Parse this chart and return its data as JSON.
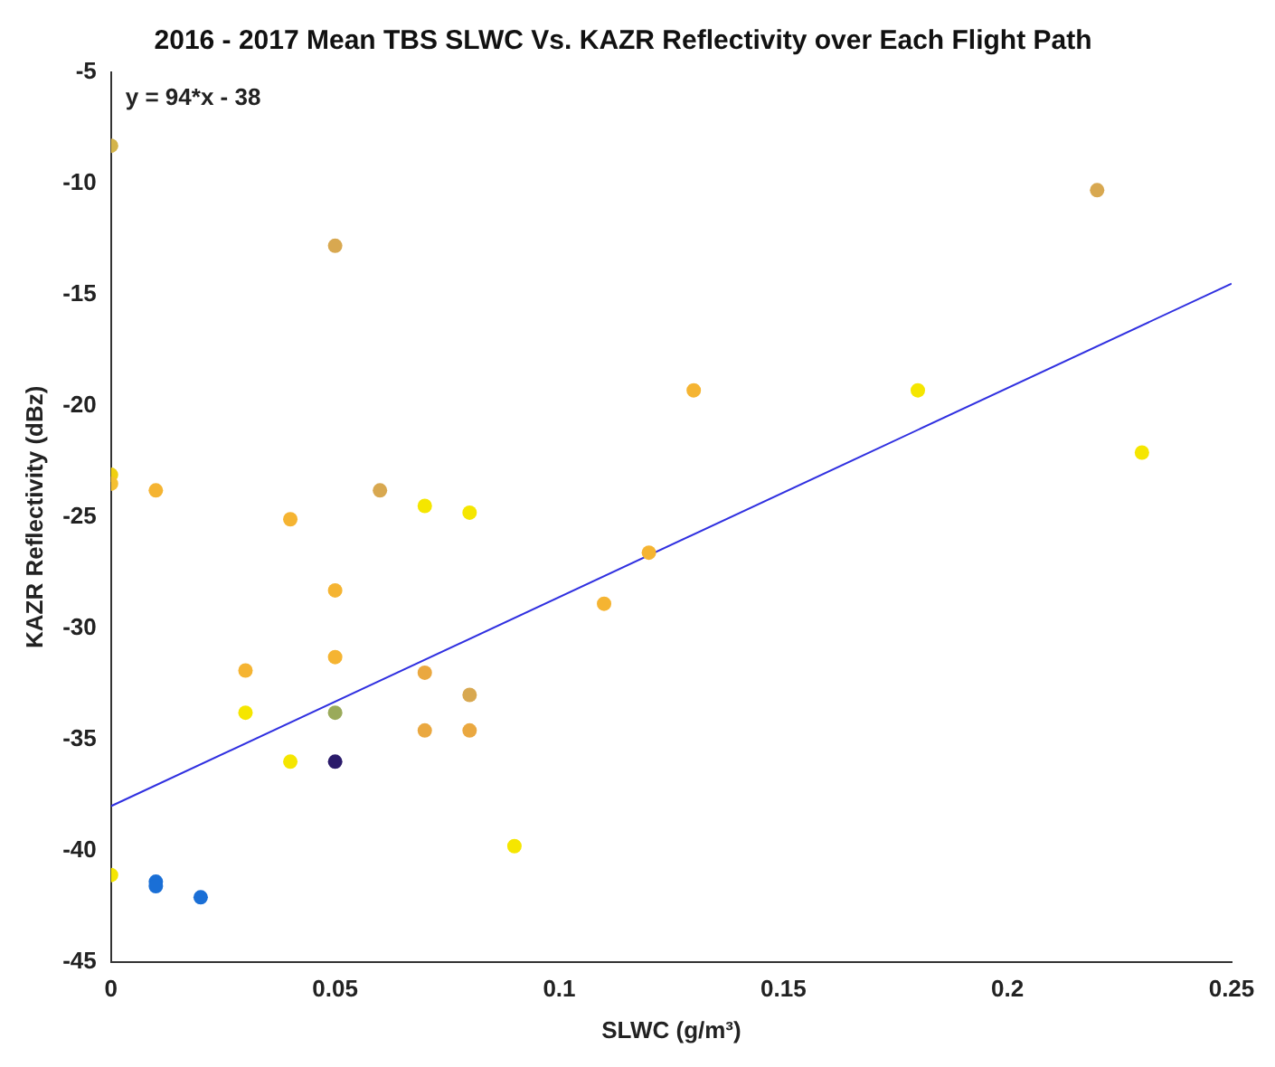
{
  "chart_data": {
    "type": "scatter",
    "title": "2016 - 2017 Mean TBS SLWC Vs. KAZR Reflectivity over Each Flight Path",
    "xlabel": "SLWC (g/m³)",
    "ylabel": "KAZR Reflectivity (dBz)",
    "annotations": [
      "y = 94*x - 38"
    ],
    "xlim": [
      0,
      0.25
    ],
    "xticks": [
      0,
      0.05,
      0.1,
      0.15,
      0.2,
      0.25
    ],
    "ylim": [
      -45,
      -5
    ],
    "yticks": [
      -45,
      -40,
      -35,
      -30,
      -25,
      -20,
      -15,
      -10,
      -5
    ],
    "grid": false,
    "legend": false,
    "marker": "circle",
    "series": [
      {
        "type": "scatter",
        "x": [
          0,
          0,
          0,
          0,
          0.01,
          0.01,
          0.01,
          0.02,
          0.03,
          0.03,
          0.04,
          0.04,
          0.05,
          0.05,
          0.05,
          0.05,
          0.05,
          0.06,
          0.07,
          0.07,
          0.07,
          0.08,
          0.08,
          0.08,
          0.09,
          0.11,
          0.12,
          0.13,
          0.18,
          0.22,
          0.23
        ],
        "values": [
          -8.3,
          -23.1,
          -23.5,
          -41.1,
          -23.8,
          -41.4,
          -41.6,
          -42.1,
          -31.9,
          -33.8,
          -25.1,
          -36.0,
          -12.8,
          -28.3,
          -31.3,
          -33.8,
          -36.0,
          -23.8,
          -24.5,
          -32.0,
          -34.6,
          -24.8,
          -33.0,
          -34.6,
          -39.8,
          -28.9,
          -26.6,
          -19.3,
          -19.3,
          -10.3,
          -22.1
        ],
        "colors": [
          "#d4b44a",
          "#f0d010",
          "#f5c030",
          "#f5e600",
          "#f5b432",
          "#1a6fd6",
          "#1a6fd6",
          "#1a6fd6",
          "#f5b432",
          "#f5e600",
          "#f5b432",
          "#f5e600",
          "#d8a850",
          "#f5b432",
          "#f5b432",
          "#9aaa5a",
          "#2a1a6a",
          "#d8a850",
          "#f5e600",
          "#eaa840",
          "#eaa840",
          "#f5e600",
          "#d8a850",
          "#eaa840",
          "#f5e600",
          "#f5b432",
          "#f5b432",
          "#f5b432",
          "#f5e600",
          "#d8a850",
          "#f5e600"
        ]
      },
      {
        "type": "line",
        "color": "#3030e0",
        "x": [
          0,
          0.25
        ],
        "values": [
          -38,
          -14.5
        ],
        "marker": "none"
      }
    ]
  }
}
